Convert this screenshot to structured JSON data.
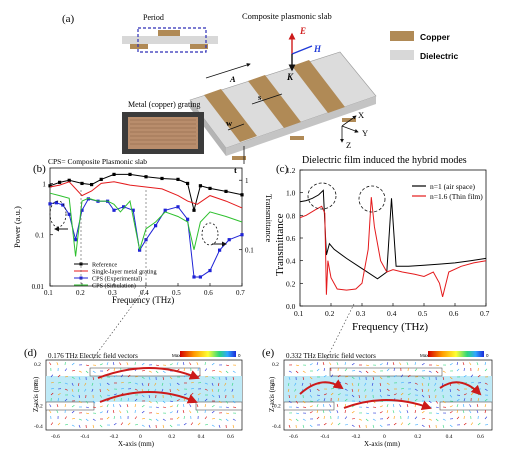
{
  "panels": {
    "a": {
      "label": "(a)",
      "period_label": "Period",
      "title": "Composite plasmonic slab",
      "legend": {
        "copper": "Copper",
        "dielectric": "Dielectric"
      },
      "dims": {
        "A": "A",
        "w": "w",
        "s": "s",
        "t": "t"
      },
      "fields": {
        "E": "E",
        "H": "H",
        "K": "K"
      },
      "axes": {
        "x": "X",
        "y": "Y",
        "z": "Z"
      },
      "photo_caption": "Metal (copper) grating",
      "colors": {
        "copper": "#b08a56",
        "dielectric": "#d8d8d8",
        "period_box": "#2d2fb8"
      }
    },
    "b": {
      "label": "(b)",
      "note": "CPS= Composite Plasmonic slab",
      "ylabel_left": "Power (a.u.)",
      "ylabel_right": "Transmittance",
      "xlabel": "Frequency (THz)",
      "left_ticks": [
        "1",
        "0.1",
        "0.01"
      ],
      "right_ticks": [
        "1",
        "0.1"
      ],
      "x_ticks": [
        "0.1",
        "0.2",
        "0.3",
        "0.4",
        "0.5",
        "0.6",
        "0.7"
      ]
    },
    "c": {
      "label": "(c)",
      "title": "Dielectric film induced the hybrid modes",
      "ylabel": "Transmittance",
      "xlabel": "Frequency (THz)",
      "y_ticks": [
        "0.0",
        "0.2",
        "0.4",
        "0.6",
        "0.8",
        "1.0",
        "1.2"
      ],
      "x_ticks": [
        "0.1",
        "0.2",
        "0.3",
        "0.4",
        "0.5",
        "0.6",
        "0.7"
      ]
    },
    "d": {
      "label": "(d)",
      "title": "0.176 THz  Electric field vectors",
      "colorbar_max": "Max",
      "colorbar_min": "0",
      "xlabel": "X-axis (mm)",
      "ylabel": "Z-axis (mm)",
      "x_ticks": [
        "-0.6",
        "-0.4",
        "-0.2",
        "0",
        "0.2",
        "0.4",
        "0.6"
      ],
      "y_ticks": [
        "0.2",
        "0",
        "-0.2",
        "-0.4"
      ]
    },
    "e": {
      "label": "(e)",
      "title": "0.332 THz  Electric field vectors",
      "colorbar_max": "Max",
      "colorbar_min": "0",
      "xlabel": "X-axis (mm)",
      "ylabel": "Z-axis (mm)",
      "x_ticks": [
        "-0.6",
        "-0.4",
        "-0.2",
        "0",
        "0.2",
        "0.4",
        "0.6"
      ],
      "y_ticks": [
        "0.2",
        "0",
        "-0.2",
        "-0.4"
      ]
    }
  },
  "chart_data": [
    {
      "type": "line",
      "panel": "b",
      "xlabel": "Frequency (THz)",
      "ylabel": "Power (a.u.)",
      "y2label": "Transmittance",
      "xlim": [
        0.1,
        0.7
      ],
      "ylim": [
        0.01,
        2
      ],
      "yscale": "log",
      "legend_position": "bottom-left",
      "series": [
        {
          "name": "Reference",
          "color": "#000000",
          "marker": "square",
          "axis": "left",
          "x": [
            0.1,
            0.13,
            0.16,
            0.2,
            0.23,
            0.26,
            0.3,
            0.35,
            0.4,
            0.45,
            0.5,
            0.53,
            0.55,
            0.57,
            0.6,
            0.65,
            0.7
          ],
          "y": [
            0.9,
            1.05,
            1.15,
            1.0,
            0.95,
            1.2,
            1.5,
            1.5,
            1.35,
            1.25,
            1.2,
            1.0,
            0.3,
            0.9,
            0.8,
            0.7,
            0.6
          ]
        },
        {
          "name": "Single-layer metal grating",
          "color": "#e41a1c",
          "marker": "",
          "axis": "right",
          "x": [
            0.1,
            0.13,
            0.16,
            0.2,
            0.23,
            0.26,
            0.3,
            0.35,
            0.4,
            0.45,
            0.5,
            0.53,
            0.56,
            0.6,
            0.65,
            0.7
          ],
          "y": [
            0.8,
            0.85,
            0.95,
            0.6,
            0.7,
            0.9,
            0.95,
            0.85,
            0.8,
            0.75,
            0.6,
            0.5,
            0.45,
            0.6,
            0.5,
            0.4
          ]
        },
        {
          "name": "CPS (Experimental)",
          "color": "#1f23d6",
          "marker": "square",
          "axis": "left",
          "x": [
            0.1,
            0.12,
            0.14,
            0.16,
            0.18,
            0.2,
            0.22,
            0.25,
            0.28,
            0.3,
            0.33,
            0.36,
            0.38,
            0.4,
            0.43,
            0.46,
            0.5,
            0.53,
            0.55,
            0.57,
            0.6,
            0.63,
            0.66,
            0.7
          ],
          "y": [
            0.4,
            0.42,
            0.38,
            0.25,
            0.08,
            0.3,
            0.5,
            0.45,
            0.45,
            0.3,
            0.35,
            0.3,
            0.05,
            0.08,
            0.15,
            0.3,
            0.35,
            0.2,
            0.015,
            0.015,
            0.02,
            0.05,
            0.08,
            0.1
          ]
        },
        {
          "name": "CPS (Simulation)",
          "color": "#2ec02e",
          "marker": "",
          "axis": "right",
          "x": [
            0.1,
            0.13,
            0.16,
            0.18,
            0.2,
            0.22,
            0.25,
            0.28,
            0.3,
            0.32,
            0.35,
            0.38,
            0.4,
            0.43,
            0.46,
            0.5,
            0.53,
            0.55,
            0.57,
            0.6,
            0.65,
            0.7
          ],
          "y": [
            0.65,
            0.6,
            0.55,
            0.08,
            0.5,
            0.55,
            0.5,
            0.5,
            0.45,
            0.35,
            0.5,
            0.1,
            0.2,
            0.25,
            0.35,
            0.3,
            0.25,
            0.1,
            0.25,
            0.35,
            0.3,
            0.25
          ]
        }
      ]
    },
    {
      "type": "line",
      "panel": "c",
      "title": "Dielectric film induced the hybrid modes",
      "xlabel": "Frequency (THz)",
      "ylabel": "Transmittance",
      "xlim": [
        0.1,
        0.7
      ],
      "ylim": [
        0.0,
        1.2
      ],
      "legend_position": "top-right",
      "series": [
        {
          "name": "n=1 (air space)",
          "color": "#000000",
          "x": [
            0.1,
            0.12,
            0.14,
            0.16,
            0.175,
            0.185,
            0.195,
            0.21,
            0.25,
            0.3,
            0.35,
            0.38,
            0.395,
            0.41,
            0.45,
            0.5,
            0.55,
            0.6,
            0.65,
            0.7
          ],
          "y": [
            0.92,
            0.93,
            0.95,
            0.98,
            1.02,
            0.45,
            0.55,
            0.5,
            0.42,
            0.33,
            0.24,
            0.3,
            0.95,
            0.35,
            0.35,
            0.36,
            0.37,
            0.38,
            0.4,
            0.42
          ]
        },
        {
          "name": "n=1.6 (Thin film)",
          "color": "#e41a1c",
          "x": [
            0.1,
            0.12,
            0.15,
            0.17,
            0.18,
            0.185,
            0.19,
            0.2,
            0.22,
            0.25,
            0.28,
            0.3,
            0.32,
            0.33,
            0.34,
            0.36,
            0.38,
            0.4,
            0.43,
            0.47,
            0.5,
            0.53,
            0.55,
            0.56,
            0.58,
            0.62,
            0.66,
            0.7
          ],
          "y": [
            0.78,
            0.8,
            0.85,
            0.88,
            0.82,
            0.1,
            0.4,
            0.25,
            0.15,
            0.14,
            0.15,
            0.2,
            0.5,
            0.96,
            0.7,
            0.4,
            0.3,
            0.32,
            0.3,
            0.28,
            0.26,
            0.3,
            0.2,
            0.08,
            0.3,
            0.35,
            0.38,
            0.4
          ]
        }
      ]
    }
  ]
}
